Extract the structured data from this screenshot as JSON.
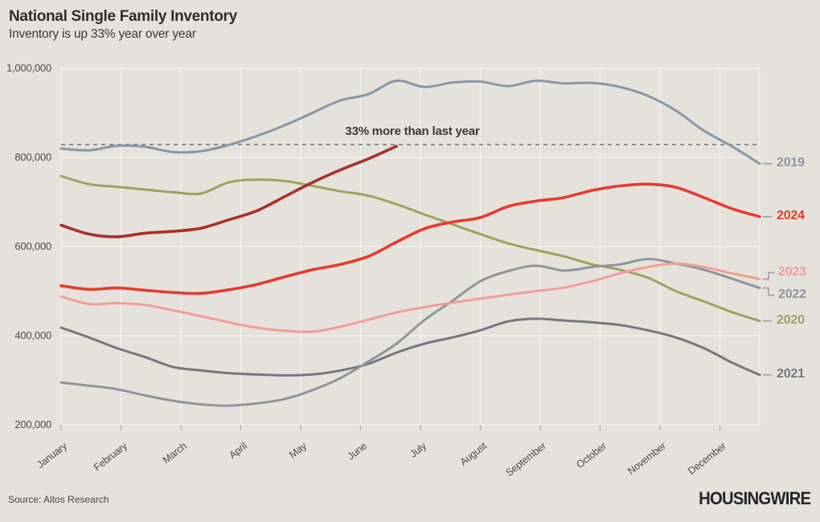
{
  "header": {
    "title": "National Single Family Inventory",
    "subtitle": "Inventory is up 33% year over year"
  },
  "annotation": {
    "text": "33% more than last year",
    "value": 829000
  },
  "footer": {
    "source": "Source: Altos Research",
    "brand": "HOUSINGWIRE"
  },
  "chart_data": {
    "type": "line",
    "title": "National Single Family Inventory",
    "x_tick_labels": [
      "January",
      "February",
      "March",
      "April",
      "May",
      "June",
      "July",
      "August",
      "September",
      "October",
      "November",
      "December"
    ],
    "y_tick_labels": [
      "200,000",
      "400,000",
      "600,000",
      "800,000",
      "1,000,000"
    ],
    "y_tick_values": [
      200000,
      400000,
      600000,
      800000,
      1000000
    ],
    "ylim": [
      200000,
      1000000
    ],
    "grid": true,
    "legend_position": "right-edge-labels",
    "reference_line": {
      "value": 829000,
      "style": "dashed",
      "color": "#77787a"
    },
    "colors": {
      "background": "#e5e2dc",
      "gridline": "#f2f0eb",
      "connector": "#9a9a98",
      "tick": "#b5b1aa"
    },
    "series": [
      {
        "label": "2019",
        "color": "#8897a6",
        "width": 3,
        "label_offset": 0,
        "end_fraction": 1,
        "values": [
          820000,
          816000,
          826000,
          824000,
          812000,
          814000,
          828000,
          848000,
          872000,
          900000,
          928000,
          942000,
          972000,
          958000,
          968000,
          970000,
          960000,
          972000,
          966000,
          967000,
          958000,
          938000,
          905000,
          860000,
          825000,
          786000
        ]
      },
      {
        "label": "2020",
        "color": "#9ba35f",
        "width": 3,
        "label_offset": 0,
        "end_fraction": 1,
        "values": [
          758000,
          740000,
          734000,
          728000,
          722000,
          719000,
          744000,
          750000,
          747000,
          736000,
          724000,
          714000,
          695000,
          672000,
          650000,
          628000,
          607000,
          592000,
          578000,
          560000,
          548000,
          530000,
          500000,
          477000,
          453000,
          433000
        ]
      },
      {
        "label": "2021",
        "color": "#74787e",
        "width": 3,
        "label_offset": 0,
        "end_fraction": 1,
        "values": [
          418000,
          396000,
          372000,
          352000,
          330000,
          322000,
          316000,
          313000,
          311000,
          313000,
          322000,
          337000,
          362000,
          382000,
          396000,
          412000,
          432000,
          438000,
          434000,
          430000,
          424000,
          412000,
          396000,
          372000,
          340000,
          312000
        ]
      },
      {
        "label": "2022",
        "color": "#8e959b",
        "width": 3,
        "label_offset": 9,
        "end_fraction": 1,
        "values": [
          295000,
          288000,
          280000,
          266000,
          254000,
          246000,
          243000,
          248000,
          258000,
          278000,
          305000,
          342000,
          382000,
          435000,
          478000,
          522000,
          545000,
          557000,
          546000,
          554000,
          560000,
          572000,
          562000,
          548000,
          528000,
          507000
        ]
      },
      {
        "label": "2023",
        "color": "#f29d96",
        "width": 3,
        "label_offset": -8,
        "end_fraction": 1,
        "values": [
          488000,
          471000,
          473000,
          469000,
          457000,
          444000,
          430000,
          418000,
          411000,
          409000,
          420000,
          436000,
          452000,
          464000,
          474000,
          483000,
          492000,
          500000,
          508000,
          522000,
          540000,
          554000,
          562000,
          554000,
          540000,
          527000
        ]
      },
      {
        "label": "2024",
        "color": "#e63b2e",
        "width": 3.6,
        "label_offset": 0,
        "end_fraction": 1,
        "values": [
          512000,
          504000,
          507000,
          502000,
          497000,
          495000,
          503000,
          515000,
          532000,
          548000,
          560000,
          578000,
          610000,
          640000,
          655000,
          665000,
          690000,
          702000,
          710000,
          726000,
          736000,
          740000,
          733000,
          710000,
          685000,
          667000
        ]
      },
      {
        "label": "",
        "name": "current-year-partial",
        "color": "#a93029",
        "width": 3.6,
        "label_offset": 0,
        "end_fraction": 0.48,
        "values": [
          648000,
          628000,
          622000,
          630000,
          634000,
          641000,
          660000,
          680000,
          712000,
          744000,
          772000,
          797000,
          825000
        ]
      }
    ]
  }
}
